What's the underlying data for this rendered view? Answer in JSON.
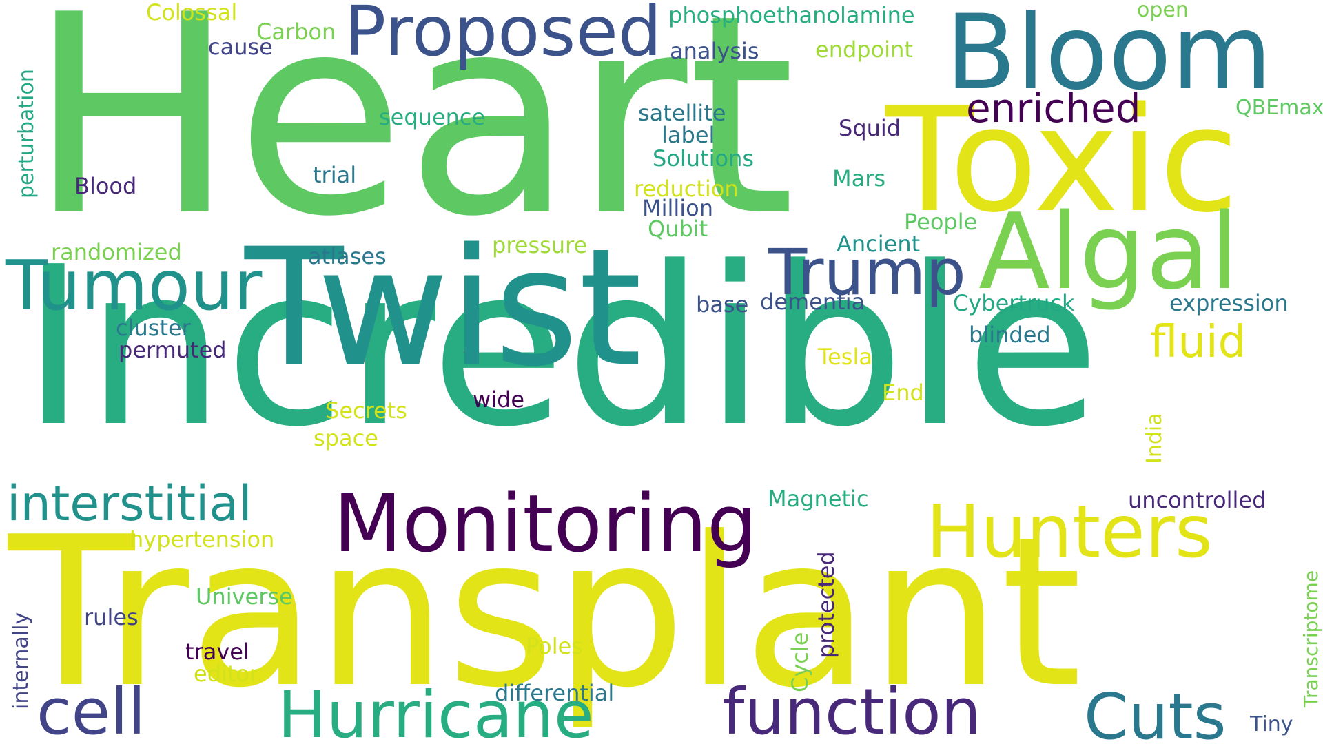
{
  "words": [
    {
      "text": "Heart",
      "color": "#5ec962"
    },
    {
      "text": "Incredible",
      "color": "#27ad81"
    },
    {
      "text": "Transplant",
      "color": "#e2e418"
    },
    {
      "text": "Twist",
      "color": "#21918c"
    },
    {
      "text": "Toxic",
      "color": "#e2e418"
    },
    {
      "text": "Bloom",
      "color": "#2a788e"
    },
    {
      "text": "Algal",
      "color": "#7ad151"
    },
    {
      "text": "Proposed",
      "color": "#3b528b"
    },
    {
      "text": "Monitoring",
      "color": "#440154"
    },
    {
      "text": "Hunters",
      "color": "#e2e418"
    },
    {
      "text": "Tumour",
      "color": "#21918c"
    },
    {
      "text": "Trump",
      "color": "#3b528b"
    },
    {
      "text": "Hurricane",
      "color": "#27ad81"
    },
    {
      "text": "function",
      "color": "#482878"
    },
    {
      "text": "Cuts",
      "color": "#2a788e"
    },
    {
      "text": "cell",
      "color": "#414487"
    },
    {
      "text": "interstitial",
      "color": "#21918c"
    },
    {
      "text": "enriched",
      "color": "#440154"
    },
    {
      "text": "fluid",
      "color": "#e2e418"
    },
    {
      "text": "Colossal",
      "color": "#d2e21b"
    },
    {
      "text": "Carbon",
      "color": "#7ad151"
    },
    {
      "text": "cause",
      "color": "#414487"
    },
    {
      "text": "phosphoethanolamine",
      "color": "#27ad81"
    },
    {
      "text": "open",
      "color": "#7ad151"
    },
    {
      "text": "analysis",
      "color": "#3b528b"
    },
    {
      "text": "endpoint",
      "color": "#a0da39"
    },
    {
      "text": "sequence",
      "color": "#27ad81"
    },
    {
      "text": "satellite",
      "color": "#2a788e"
    },
    {
      "text": "label",
      "color": "#2a788e"
    },
    {
      "text": "Squid",
      "color": "#482878"
    },
    {
      "text": "QBEmax",
      "color": "#5ec962"
    },
    {
      "text": "Solutions",
      "color": "#22a884"
    },
    {
      "text": "Blood",
      "color": "#482878"
    },
    {
      "text": "trial",
      "color": "#2a788e"
    },
    {
      "text": "reduction",
      "color": "#d2e21b"
    },
    {
      "text": "Mars",
      "color": "#27ad81"
    },
    {
      "text": "Million",
      "color": "#3b528b"
    },
    {
      "text": "Qubit",
      "color": "#5ec962"
    },
    {
      "text": "People",
      "color": "#5ec962"
    },
    {
      "text": "randomized",
      "color": "#7ad151"
    },
    {
      "text": "atlases",
      "color": "#2a788e"
    },
    {
      "text": "pressure",
      "color": "#a0da39"
    },
    {
      "text": "Ancient",
      "color": "#21918c"
    },
    {
      "text": "cluster",
      "color": "#2a788e"
    },
    {
      "text": "base",
      "color": "#3b528b"
    },
    {
      "text": "dementia",
      "color": "#3b528b"
    },
    {
      "text": "Cybertruck",
      "color": "#22a884"
    },
    {
      "text": "expression",
      "color": "#2a788e"
    },
    {
      "text": "permuted",
      "color": "#482878"
    },
    {
      "text": "blinded",
      "color": "#2a788e"
    },
    {
      "text": "Tesla",
      "color": "#e2e418"
    },
    {
      "text": "End",
      "color": "#d2e21b"
    },
    {
      "text": "wide",
      "color": "#440154"
    },
    {
      "text": "Secrets",
      "color": "#d2e21b"
    },
    {
      "text": "space",
      "color": "#d2e21b"
    },
    {
      "text": "Magnetic",
      "color": "#27ad81"
    },
    {
      "text": "uncontrolled",
      "color": "#482878"
    },
    {
      "text": "hypertension",
      "color": "#d2e21b"
    },
    {
      "text": "Universe",
      "color": "#5ec962"
    },
    {
      "text": "rules",
      "color": "#414487"
    },
    {
      "text": "travel",
      "color": "#440154"
    },
    {
      "text": "editor",
      "color": "#d2e21b"
    },
    {
      "text": "Poles",
      "color": "#d2e21b"
    },
    {
      "text": "differential",
      "color": "#2a788e"
    },
    {
      "text": "Tiny",
      "color": "#3b528b"
    },
    {
      "text": "perturbation",
      "color": "#22a884"
    },
    {
      "text": "internally",
      "color": "#414487"
    },
    {
      "text": "protected",
      "color": "#482878"
    },
    {
      "text": "Cycle",
      "color": "#7ad151"
    },
    {
      "text": "India",
      "color": "#d2e21b"
    },
    {
      "text": "Transcriptome",
      "color": "#7ad151"
    }
  ]
}
